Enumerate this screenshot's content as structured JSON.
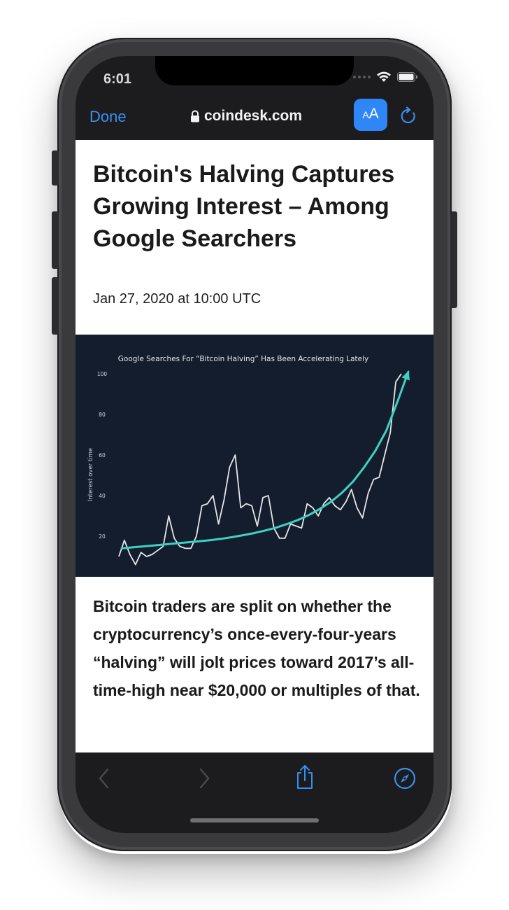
{
  "status": {
    "time": "6:01"
  },
  "navbar": {
    "done_label": "Done",
    "url": "coindesk.com",
    "text_size_small": "A",
    "text_size_large": "A"
  },
  "article": {
    "headline": "Bitcoin's Halving Captures Growing Interest – Among Google Searchers",
    "date": "Jan 27, 2020 at 10:00 UTC",
    "lead": "Bitcoin traders are split on whether the cryptocurrency’s once-every-four-years “halving” will jolt prices toward 2017’s all-time-high near $20,000 or multiples of that."
  },
  "chart_data": {
    "type": "line",
    "title": "Google Searches For “Bitcoin Halving” Has Been Accelerating Lately",
    "ylabel": "Interest over time",
    "xlabel": "",
    "y_ticks": [
      20,
      40,
      60,
      80,
      100
    ],
    "ylim": [
      0,
      100
    ],
    "grid": false,
    "series": [
      {
        "role": "searches",
        "color": "#e6e6ea",
        "values": [
          10,
          18,
          11,
          6,
          12,
          10,
          11,
          13,
          15,
          30,
          19,
          15,
          14,
          14,
          20,
          35,
          36,
          40,
          26,
          38,
          54,
          60,
          34,
          36,
          35,
          25,
          39,
          40,
          24,
          19,
          19,
          26,
          25,
          24,
          36,
          34,
          30,
          36,
          39,
          35,
          33,
          37,
          43,
          34,
          29,
          41,
          48,
          49,
          60,
          71,
          96,
          100
        ]
      },
      {
        "role": "trend",
        "color": "#3fd1bf",
        "values": [
          14,
          14.5,
          15,
          15.5,
          16,
          16.5,
          17,
          17.5,
          18,
          18.7,
          19.5,
          20.5,
          21.5,
          22.8,
          24.2,
          26,
          28,
          30.5,
          33.5,
          37,
          41.5,
          47,
          54,
          62,
          72,
          86,
          101
        ]
      }
    ]
  },
  "colors": {
    "accent": "#3a8ef0",
    "chart_bg": "#141d2e",
    "trend": "#3fd1bf",
    "line": "#e6e6ea"
  },
  "icons": {
    "back": "chevron-left-icon",
    "forward": "chevron-right-icon",
    "share": "share-icon",
    "compass": "compass-icon"
  }
}
